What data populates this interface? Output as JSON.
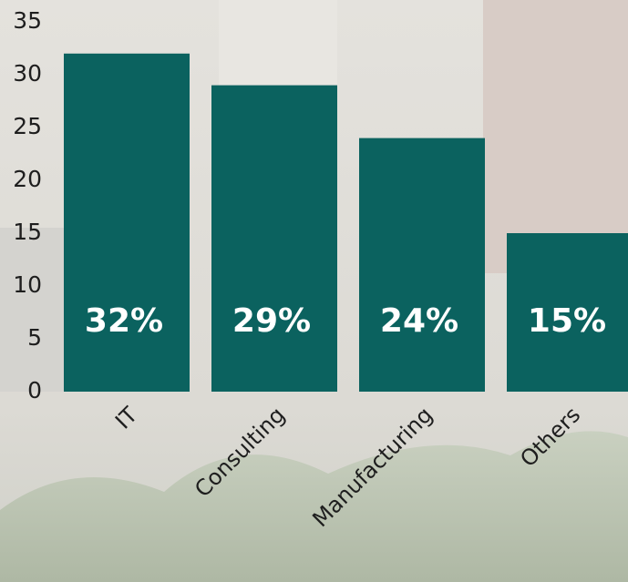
{
  "chart_data": {
    "type": "bar",
    "categories": [
      "IT",
      "Consulting",
      "Manufacturing",
      "Others"
    ],
    "values": [
      32,
      29,
      24,
      15
    ],
    "value_labels": [
      "32%",
      "29%",
      "24%",
      "15%"
    ],
    "color": "#0b625f",
    "ylim": [
      0,
      35
    ],
    "yticks": [
      0,
      5,
      10,
      15,
      20,
      25,
      30,
      35
    ],
    "grid": false
  }
}
